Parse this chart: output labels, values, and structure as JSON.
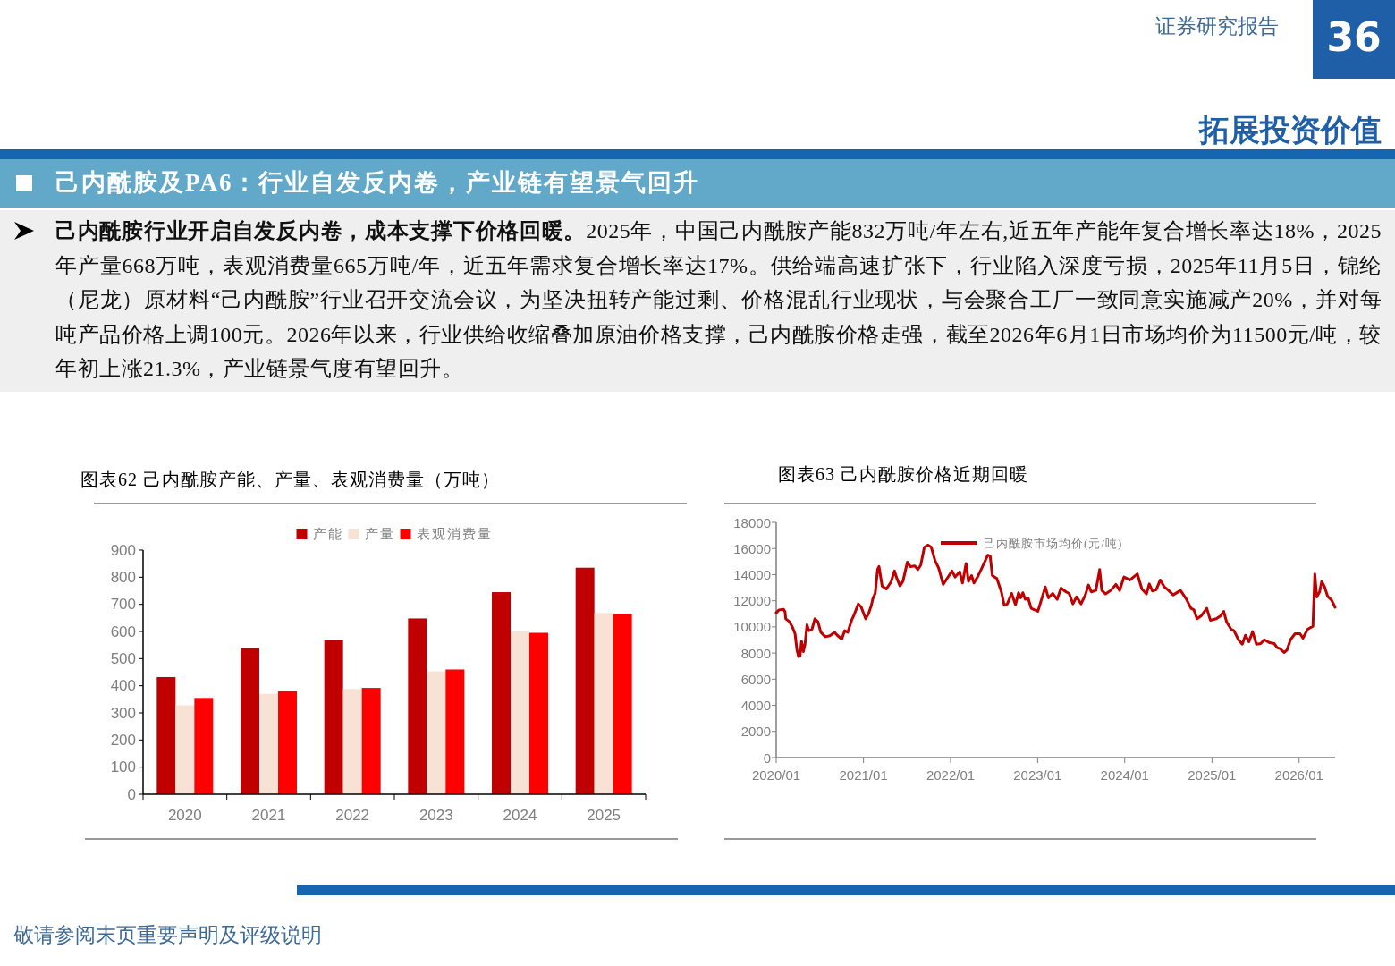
{
  "chart_data": [
    {
      "type": "other",
      "title": "己内酰胺及PA6：行业自发反内卷，产业链有望景气回升",
      "annotations": [
        "己内酰胺行业开启自发反内卷，成本支撑下价格回暖。",
        "2025年，中国己内酰胺产能832万吨/年左右,近五年产能年复合增长率达18%，2025年产量668万吨，表观消费量665万吨/年，近五年需求复合增长率达17%。供给端高速扩张下，行业陷入深度亏损，2025年11月5日，锦纶（尼龙）原材料“己内酰胺”行业召开交流会议，为坚决扭转产能过剩、价格混乱行业现状，与会聚合工厂一致同意实施减产20%，并对每吨产品价格上调100元。2026年以来，行业供给收缩叠加原油价格支撑，己内酰胺价格走强，截至2026年6月1日市场均价为11500元/吨，较年初上涨21.3%，产业链景气度有望回升。",
        "证券研究报告",
        "36",
        "拓展投资价值",
        "敬请参阅末页重要声明及评级说明"
      ]
    },
    {
      "type": "bar",
      "title": "图表62  己内酰胺产能、产量、表观消费量（万吨）",
      "categories": [
        "2020",
        "2021",
        "2022",
        "2023",
        "2024",
        "2025"
      ],
      "series": [
        {
          "name": "产能",
          "color": "#c00000",
          "values": [
            432,
            538,
            568,
            648,
            745,
            835
          ]
        },
        {
          "name": "产量",
          "color": "#f8e2d6",
          "values": [
            328,
            370,
            388,
            453,
            600,
            668
          ]
        },
        {
          "name": "表观消费量",
          "color": "#ff0000",
          "values": [
            355,
            380,
            392,
            460,
            595,
            665
          ]
        }
      ],
      "ylim": [
        0,
        900
      ],
      "yticks": [
        0,
        100,
        200,
        300,
        400,
        500,
        600,
        700,
        800,
        900
      ],
      "legend": "top"
    },
    {
      "type": "line",
      "title": "图表63  己内酰胺价格近期回暖",
      "x": [
        "2020-01-01",
        "2020-01-13",
        "2020-02-01",
        "2020-02-07",
        "2020-02-10",
        "2020-02-26",
        "2020-03-10",
        "2020-03-20",
        "2020-03-28",
        "2020-04-04",
        "2020-04-10",
        "2020-04-16",
        "2020-04-24",
        "2020-05-01",
        "2020-05-09",
        "2020-05-17",
        "2020-05-30",
        "2020-06-11",
        "2020-06-24",
        "2020-07-06",
        "2020-07-25",
        "2020-08-13",
        "2020-09-01",
        "2020-09-13",
        "2020-10-02",
        "2020-10-14",
        "2020-10-27",
        "2020-11-12",
        "2020-11-21",
        "2020-12-10",
        "2020-12-22",
        "2021-01-10",
        "2021-01-22",
        "2021-02-03",
        "2021-02-09",
        "2021-02-19",
        "2021-03-01",
        "2021-03-07",
        "2021-03-20",
        "2021-04-07",
        "2021-04-26",
        "2021-05-11",
        "2021-05-21",
        "2021-06-03",
        "2021-06-15",
        "2021-07-04",
        "2021-07-16",
        "2021-08-04",
        "2021-08-17",
        "2021-08-29",
        "2021-09-13",
        "2021-09-29",
        "2021-10-12",
        "2021-10-28",
        "2021-11-12",
        "2021-12-01",
        "2021-12-13",
        "2022-01-07",
        "2022-01-20",
        "2022-02-08",
        "2022-02-20",
        "2022-03-07",
        "2022-03-17",
        "2022-03-30",
        "2022-04-09",
        "2022-04-24",
        "2022-05-12",
        "2022-06-06",
        "2022-06-16",
        "2022-06-25",
        "2022-07-14",
        "2022-08-02",
        "2022-08-14",
        "2022-08-27",
        "2022-09-14",
        "2022-09-30",
        "2022-10-13",
        "2022-10-22",
        "2022-10-31",
        "2022-11-10",
        "2022-11-22",
        "2022-12-05",
        "2023-01-02",
        "2023-01-21",
        "2023-02-02",
        "2023-02-15",
        "2023-03-05",
        "2023-03-24",
        "2023-04-09",
        "2023-04-30",
        "2023-05-13",
        "2023-05-29",
        "2023-06-13",
        "2023-07-02",
        "2023-07-20",
        "2023-08-02",
        "2023-08-14",
        "2023-09-02",
        "2023-09-18",
        "2023-09-27",
        "2023-10-13",
        "2023-11-03",
        "2023-11-25",
        "2023-12-11",
        "2023-12-29",
        "2024-01-23",
        "2024-02-23",
        "2024-03-13",
        "2024-04-01",
        "2024-04-13",
        "2024-04-26",
        "2024-05-12",
        "2024-05-29",
        "2024-06-15",
        "2024-07-03",
        "2024-07-22",
        "2024-08-22",
        "2024-09-16",
        "2024-10-05",
        "2024-10-17",
        "2024-10-30",
        "2024-11-17",
        "2024-12-10",
        "2024-12-25",
        "2025-01-19",
        "2025-02-06",
        "2025-02-19",
        "2025-03-03",
        "2025-03-22",
        "2025-04-03",
        "2025-04-22",
        "2025-05-08",
        "2025-05-21",
        "2025-06-05",
        "2025-06-20",
        "2025-07-06",
        "2025-07-24",
        "2025-08-08",
        "2025-08-31",
        "2025-09-19",
        "2025-10-01",
        "2025-10-13",
        "2025-10-30",
        "2025-11-11",
        "2025-11-26",
        "2025-12-15",
        "2026-01-05",
        "2026-01-17",
        "2026-02-06",
        "2026-02-28",
        "2026-03-08",
        "2026-03-16",
        "2026-03-28",
        "2026-04-06",
        "2026-04-18",
        "2026-05-01",
        "2026-05-17",
        "2026-06-01"
      ],
      "series": [
        {
          "name": "己内酰胺市场均价(元/吨)",
          "color": "#c00000",
          "values": [
            11080,
            11300,
            11350,
            11150,
            10620,
            10390,
            9940,
            9480,
            8220,
            7720,
            7760,
            8900,
            8110,
            8720,
            10160,
            9710,
            9820,
            10620,
            10390,
            9590,
            9250,
            9320,
            9590,
            9360,
            9070,
            9710,
            9590,
            10510,
            10850,
            11760,
            11530,
            10620,
            11010,
            11650,
            12150,
            12560,
            14390,
            14620,
            13130,
            12900,
            13430,
            14280,
            13700,
            13130,
            13480,
            14960,
            14620,
            14660,
            14390,
            14730,
            16100,
            16260,
            16100,
            15070,
            14500,
            13250,
            13590,
            14280,
            13820,
            14210,
            13360,
            14850,
            13480,
            13930,
            13360,
            13820,
            14500,
            15490,
            15420,
            13930,
            13700,
            12680,
            11650,
            11760,
            12560,
            11700,
            12610,
            12220,
            12610,
            12110,
            12220,
            11420,
            11190,
            12330,
            13060,
            12220,
            12560,
            12110,
            12970,
            12680,
            12560,
            11760,
            12290,
            11760,
            12450,
            13200,
            12680,
            12790,
            14390,
            12790,
            12520,
            12790,
            13250,
            12790,
            13820,
            13590,
            14050,
            12900,
            12520,
            13290,
            12750,
            12840,
            13590,
            13060,
            12790,
            12450,
            12790,
            12110,
            11420,
            11310,
            10620,
            10850,
            11420,
            10510,
            10620,
            10850,
            11190,
            10390,
            9820,
            9710,
            9020,
            8680,
            9360,
            8860,
            9640,
            8680,
            8720,
            9020,
            8790,
            8720,
            8410,
            8340,
            8040,
            8220,
            9020,
            9480,
            9480,
            9140,
            9820,
            10050,
            14050,
            12290,
            12680,
            13480,
            13060,
            12330,
            12060,
            11500
          ]
        }
      ],
      "ylim": [
        0,
        18000
      ],
      "yticks": [
        0,
        2000,
        4000,
        6000,
        8000,
        10000,
        12000,
        14000,
        16000,
        18000
      ],
      "xlim": [
        "2020-01-01",
        "2026-06-01"
      ],
      "xticks": [
        {
          "value": "2020-01-01",
          "label": "2020/01"
        },
        {
          "value": "2021-01-01",
          "label": "2021/01"
        },
        {
          "value": "2022-01-01",
          "label": "2022/01"
        },
        {
          "value": "2023-01-01",
          "label": "2023/01"
        },
        {
          "value": "2024-01-01",
          "label": "2024/01"
        },
        {
          "value": "2025-01-01",
          "label": "2025/01"
        },
        {
          "value": "2026-01-01",
          "label": "2026/01"
        }
      ],
      "legend": "top"
    }
  ]
}
